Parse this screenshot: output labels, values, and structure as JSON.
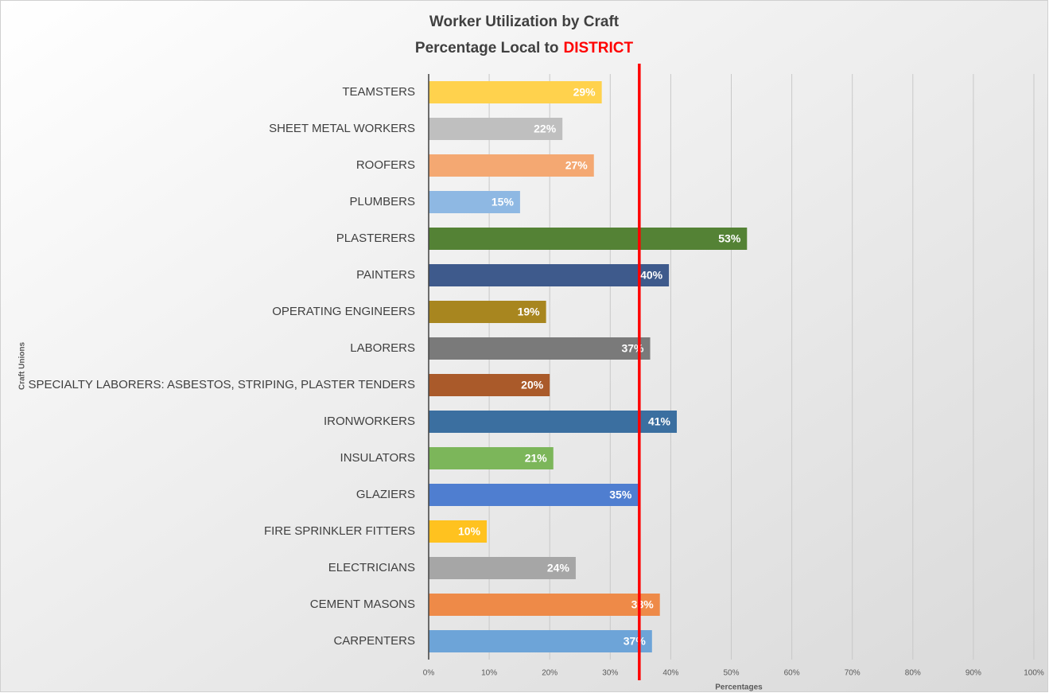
{
  "chart_data": {
    "type": "barh",
    "title": "Worker Utilization by Craft",
    "subtitle": "Percentage Local to",
    "subtitle_highlight": "DISTRICT",
    "highlight_color": "#ff0000",
    "x_label": "Percentages",
    "y_label": "Craft Unions",
    "categories": [
      "TEAMSTERS",
      "SHEET METAL WORKERS",
      "ROOFERS",
      "PLUMBERS",
      "PLASTERERS",
      "PAINTERS",
      "OPERATING ENGINEERS",
      "LABORERS",
      "SPECIALTY LABORERS: ASBESTOS, STRIPING, PLASTER TENDERS",
      "IRONWORKERS",
      "INSULATORS",
      "GLAZIERS",
      "FIRE SPRINKLER FITTERS",
      "ELECTRICIANS",
      "CEMENT MASONS",
      "CARPENTERS"
    ],
    "values": [
      28.6,
      22.1,
      27.3,
      15.1,
      52.6,
      39.7,
      19.4,
      36.6,
      20.0,
      41.0,
      20.6,
      34.6,
      9.6,
      24.3,
      38.2,
      36.9
    ],
    "value_labels": [
      "29%",
      "22%",
      "27%",
      "15%",
      "53%",
      "40%",
      "19%",
      "37%",
      "20%",
      "41%",
      "21%",
      "35%",
      "10%",
      "24%",
      "38%",
      "37%"
    ],
    "colors": [
      "#ffd24d",
      "#bfbfbf",
      "#f4a872",
      "#8eb8e3",
      "#548235",
      "#3e5a8c",
      "#a8861f",
      "#7a7a7a",
      "#aa5a2a",
      "#3b6fa0",
      "#7cb65a",
      "#4f7ed0",
      "#ffc21f",
      "#a6a6a6",
      "#ee8a48",
      "#6da4d8"
    ],
    "xlim": [
      0,
      100
    ],
    "xticks": [
      {
        "value": 0,
        "label": "0%"
      },
      {
        "value": 10,
        "label": "10%"
      },
      {
        "value": 20,
        "label": "20%"
      },
      {
        "value": 30,
        "label": "30%"
      },
      {
        "value": 40,
        "label": "40%"
      },
      {
        "value": 50,
        "label": "50%"
      },
      {
        "value": 60,
        "label": "60%"
      },
      {
        "value": 70,
        "label": "70%"
      },
      {
        "value": 80,
        "label": "80%"
      },
      {
        "value": 90,
        "label": "90%"
      },
      {
        "value": 100,
        "label": "100%"
      }
    ],
    "grid": true,
    "reference_line": {
      "value": 34.8,
      "color": "#ff0000"
    }
  }
}
